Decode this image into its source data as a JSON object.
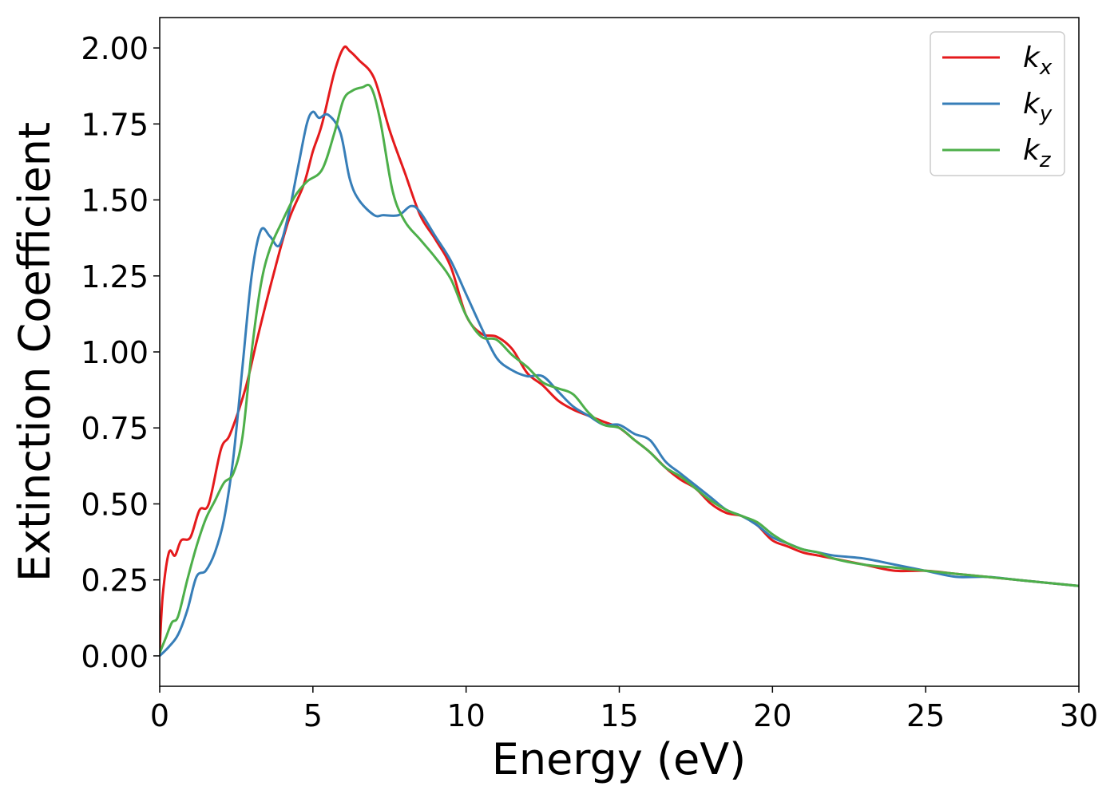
{
  "chart_data": {
    "type": "line",
    "xlabel": "Energy (eV)",
    "ylabel": "Extinction Coefficient",
    "xlim": [
      0,
      30
    ],
    "ylim": [
      -0.1,
      2.1
    ],
    "xticks": [
      0,
      5,
      10,
      15,
      20,
      25,
      30
    ],
    "xtick_labels": [
      "0",
      "5",
      "10",
      "15",
      "20",
      "25",
      "30"
    ],
    "yticks": [
      0,
      0.25,
      0.5,
      0.75,
      1.0,
      1.25,
      1.5,
      1.75,
      2.0
    ],
    "ytick_labels": [
      "0.00",
      "0.25",
      "0.50",
      "0.75",
      "1.00",
      "1.25",
      "1.50",
      "1.75",
      "2.00"
    ],
    "grid": false,
    "legend_position": "top-right",
    "series": [
      {
        "name": "k_x",
        "label_main": "k",
        "label_sub": "x",
        "color": "#e41a1c",
        "points": [
          [
            0,
            0.02
          ],
          [
            0.1,
            0.2
          ],
          [
            0.3,
            0.34
          ],
          [
            0.5,
            0.33
          ],
          [
            0.7,
            0.38
          ],
          [
            1.0,
            0.39
          ],
          [
            1.3,
            0.48
          ],
          [
            1.6,
            0.5
          ],
          [
            2.0,
            0.68
          ],
          [
            2.3,
            0.73
          ],
          [
            2.8,
            0.88
          ],
          [
            3.2,
            1.05
          ],
          [
            3.7,
            1.25
          ],
          [
            4.2,
            1.43
          ],
          [
            4.7,
            1.55
          ],
          [
            5.0,
            1.66
          ],
          [
            5.3,
            1.75
          ],
          [
            5.7,
            1.92
          ],
          [
            6.0,
            2.0
          ],
          [
            6.2,
            1.99
          ],
          [
            6.5,
            1.96
          ],
          [
            7.0,
            1.9
          ],
          [
            7.5,
            1.73
          ],
          [
            8.0,
            1.59
          ],
          [
            8.5,
            1.45
          ],
          [
            9.0,
            1.37
          ],
          [
            9.5,
            1.28
          ],
          [
            10.0,
            1.12
          ],
          [
            10.5,
            1.06
          ],
          [
            11.0,
            1.05
          ],
          [
            11.5,
            1.01
          ],
          [
            12.0,
            0.93
          ],
          [
            12.5,
            0.89
          ],
          [
            13.0,
            0.84
          ],
          [
            13.5,
            0.81
          ],
          [
            14.0,
            0.79
          ],
          [
            14.5,
            0.77
          ],
          [
            15.0,
            0.75
          ],
          [
            15.5,
            0.71
          ],
          [
            16.0,
            0.67
          ],
          [
            16.5,
            0.62
          ],
          [
            17.0,
            0.58
          ],
          [
            17.5,
            0.55
          ],
          [
            18.0,
            0.5
          ],
          [
            18.5,
            0.47
          ],
          [
            19.0,
            0.46
          ],
          [
            19.5,
            0.43
          ],
          [
            20.0,
            0.38
          ],
          [
            20.5,
            0.36
          ],
          [
            21.0,
            0.34
          ],
          [
            21.5,
            0.33
          ],
          [
            22.0,
            0.32
          ],
          [
            23.0,
            0.3
          ],
          [
            24.0,
            0.28
          ],
          [
            25.0,
            0.28
          ],
          [
            26.0,
            0.27
          ],
          [
            27.0,
            0.26
          ],
          [
            28.0,
            0.25
          ],
          [
            29.0,
            0.24
          ],
          [
            30.0,
            0.23
          ]
        ]
      },
      {
        "name": "k_y",
        "label_main": "k",
        "label_sub": "y",
        "color": "#377eb8",
        "points": [
          [
            0,
            0.0
          ],
          [
            0.3,
            0.03
          ],
          [
            0.6,
            0.07
          ],
          [
            0.9,
            0.15
          ],
          [
            1.2,
            0.26
          ],
          [
            1.5,
            0.28
          ],
          [
            1.8,
            0.34
          ],
          [
            2.1,
            0.45
          ],
          [
            2.4,
            0.65
          ],
          [
            2.7,
            0.95
          ],
          [
            3.0,
            1.25
          ],
          [
            3.3,
            1.4
          ],
          [
            3.6,
            1.38
          ],
          [
            3.9,
            1.35
          ],
          [
            4.2,
            1.45
          ],
          [
            4.5,
            1.6
          ],
          [
            4.8,
            1.75
          ],
          [
            5.0,
            1.79
          ],
          [
            5.2,
            1.77
          ],
          [
            5.5,
            1.78
          ],
          [
            5.9,
            1.72
          ],
          [
            6.2,
            1.57
          ],
          [
            6.5,
            1.5
          ],
          [
            7.0,
            1.45
          ],
          [
            7.3,
            1.45
          ],
          [
            7.8,
            1.45
          ],
          [
            8.2,
            1.48
          ],
          [
            8.5,
            1.46
          ],
          [
            9.0,
            1.38
          ],
          [
            9.5,
            1.3
          ],
          [
            10.0,
            1.19
          ],
          [
            10.5,
            1.08
          ],
          [
            11.0,
            0.98
          ],
          [
            11.5,
            0.94
          ],
          [
            12.0,
            0.92
          ],
          [
            12.5,
            0.92
          ],
          [
            13.0,
            0.87
          ],
          [
            13.5,
            0.82
          ],
          [
            14.0,
            0.79
          ],
          [
            14.5,
            0.76
          ],
          [
            15.0,
            0.76
          ],
          [
            15.5,
            0.73
          ],
          [
            16.0,
            0.71
          ],
          [
            16.5,
            0.64
          ],
          [
            17.0,
            0.6
          ],
          [
            17.5,
            0.56
          ],
          [
            18.0,
            0.52
          ],
          [
            18.5,
            0.48
          ],
          [
            19.0,
            0.46
          ],
          [
            19.5,
            0.43
          ],
          [
            20.0,
            0.39
          ],
          [
            20.5,
            0.37
          ],
          [
            21.0,
            0.35
          ],
          [
            21.5,
            0.34
          ],
          [
            22.0,
            0.33
          ],
          [
            23.0,
            0.32
          ],
          [
            24.0,
            0.3
          ],
          [
            25.0,
            0.28
          ],
          [
            26.0,
            0.26
          ],
          [
            27.0,
            0.26
          ],
          [
            28.0,
            0.25
          ],
          [
            29.0,
            0.24
          ],
          [
            30.0,
            0.23
          ]
        ]
      },
      {
        "name": "k_z",
        "label_main": "k",
        "label_sub": "z",
        "color": "#4daf4a",
        "points": [
          [
            0,
            0.01
          ],
          [
            0.2,
            0.06
          ],
          [
            0.4,
            0.11
          ],
          [
            0.6,
            0.13
          ],
          [
            0.9,
            0.25
          ],
          [
            1.2,
            0.36
          ],
          [
            1.5,
            0.45
          ],
          [
            1.8,
            0.51
          ],
          [
            2.1,
            0.57
          ],
          [
            2.4,
            0.6
          ],
          [
            2.7,
            0.72
          ],
          [
            3.0,
            1.0
          ],
          [
            3.3,
            1.22
          ],
          [
            3.6,
            1.34
          ],
          [
            4.0,
            1.43
          ],
          [
            4.4,
            1.51
          ],
          [
            4.8,
            1.56
          ],
          [
            5.3,
            1.6
          ],
          [
            5.7,
            1.72
          ],
          [
            6.0,
            1.83
          ],
          [
            6.3,
            1.86
          ],
          [
            6.6,
            1.87
          ],
          [
            6.9,
            1.87
          ],
          [
            7.2,
            1.76
          ],
          [
            7.6,
            1.53
          ],
          [
            8.0,
            1.43
          ],
          [
            8.5,
            1.37
          ],
          [
            9.0,
            1.31
          ],
          [
            9.5,
            1.24
          ],
          [
            10.0,
            1.12
          ],
          [
            10.5,
            1.05
          ],
          [
            11.0,
            1.04
          ],
          [
            11.5,
            0.99
          ],
          [
            12.0,
            0.95
          ],
          [
            12.5,
            0.9
          ],
          [
            13.0,
            0.88
          ],
          [
            13.5,
            0.86
          ],
          [
            14.0,
            0.8
          ],
          [
            14.5,
            0.76
          ],
          [
            15.0,
            0.75
          ],
          [
            15.5,
            0.71
          ],
          [
            16.0,
            0.67
          ],
          [
            16.5,
            0.62
          ],
          [
            17.0,
            0.59
          ],
          [
            17.5,
            0.55
          ],
          [
            18.0,
            0.51
          ],
          [
            18.5,
            0.48
          ],
          [
            19.0,
            0.46
          ],
          [
            19.5,
            0.44
          ],
          [
            20.0,
            0.4
          ],
          [
            20.5,
            0.37
          ],
          [
            21.0,
            0.35
          ],
          [
            21.5,
            0.34
          ],
          [
            22.0,
            0.32
          ],
          [
            23.0,
            0.3
          ],
          [
            24.0,
            0.29
          ],
          [
            25.0,
            0.28
          ],
          [
            26.0,
            0.27
          ],
          [
            27.0,
            0.26
          ],
          [
            28.0,
            0.25
          ],
          [
            29.0,
            0.24
          ],
          [
            30.0,
            0.23
          ]
        ]
      }
    ]
  }
}
